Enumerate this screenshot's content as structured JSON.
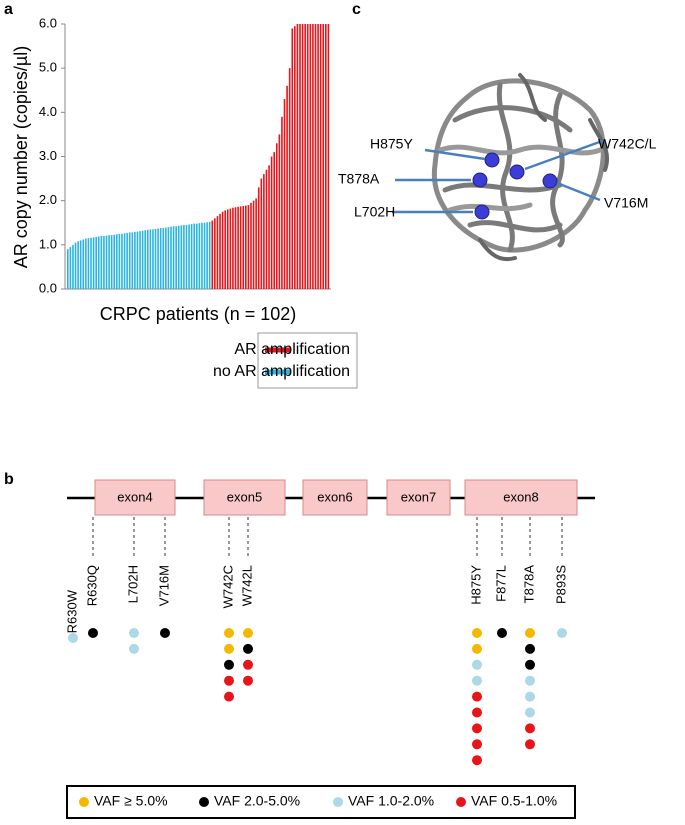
{
  "panel_labels": {
    "a": "a",
    "b": "b",
    "c": "c"
  },
  "chart_data": {
    "type": "bar",
    "ylabel": "AR copy number (copies/µl)",
    "xlabel": "CRPC patients (n = 102)",
    "ylim": [
      0,
      6
    ],
    "yticks": [
      {
        "value": 0,
        "label": "0.0"
      },
      {
        "value": 1,
        "label": "1.0"
      },
      {
        "value": 2,
        "label": "2.0"
      },
      {
        "value": 3,
        "label": "3.0"
      },
      {
        "value": 4,
        "label": "4.0"
      },
      {
        "value": 5,
        "label": "5.0"
      },
      {
        "value": 6,
        "label": "6.0"
      }
    ],
    "series": [
      {
        "name": "AR amplification",
        "color": "#e8141a",
        "values": [
          1.55,
          1.6,
          1.65,
          1.7,
          1.75,
          1.78,
          1.8,
          1.82,
          1.84,
          1.85,
          1.86,
          1.87,
          1.88,
          1.89,
          1.9,
          1.95,
          2.0,
          2.05,
          2.3,
          2.5,
          2.6,
          2.7,
          2.8,
          3.0,
          3.1,
          3.3,
          3.5,
          3.9,
          4.3,
          4.6,
          5.0,
          5.9,
          5.95,
          6,
          6,
          6,
          6,
          6,
          6,
          6,
          6,
          6,
          6,
          6,
          6,
          6
        ]
      },
      {
        "name": "no AR amplification",
        "color": "#2ab4e0",
        "values": [
          0.9,
          0.95,
          1.0,
          1.05,
          1.08,
          1.1,
          1.12,
          1.14,
          1.15,
          1.16,
          1.17,
          1.18,
          1.19,
          1.2,
          1.2,
          1.21,
          1.22,
          1.22,
          1.23,
          1.24,
          1.25,
          1.25,
          1.26,
          1.27,
          1.28,
          1.28,
          1.29,
          1.3,
          1.31,
          1.32,
          1.33,
          1.34,
          1.35,
          1.35,
          1.36,
          1.37,
          1.38,
          1.38,
          1.39,
          1.4,
          1.41,
          1.42,
          1.42,
          1.43,
          1.44,
          1.45,
          1.45,
          1.46,
          1.47,
          1.48,
          1.48,
          1.49,
          1.5,
          1.5,
          1.51,
          1.52
        ]
      }
    ]
  },
  "gene_diagram": {
    "exons": [
      "exon4",
      "exon5",
      "exon6",
      "exon7",
      "exon8"
    ],
    "mutations": [
      {
        "label": "R630W",
        "color": "#000000",
        "dots": [
          2
        ]
      },
      {
        "label": "R630Q",
        "color": "#000000",
        "dots": [
          1
        ]
      },
      {
        "label": "L702H",
        "color": "#e8141a",
        "dots": [
          2,
          2
        ]
      },
      {
        "label": "V716M",
        "color": "#000000",
        "dots": [
          1
        ]
      },
      {
        "label": "W742C",
        "color": "#e8141a",
        "dots": [
          0,
          0,
          1,
          3,
          3
        ]
      },
      {
        "label": "W742L",
        "color": "#e8141a",
        "dots": [
          0,
          1,
          3,
          3
        ]
      },
      {
        "label": "H875Y",
        "color": "#e8141a",
        "dots": [
          0,
          0,
          2,
          2,
          3,
          3,
          3,
          3,
          3
        ]
      },
      {
        "label": "F877L",
        "color": "#000000",
        "dots": [
          1
        ]
      },
      {
        "label": "T878A",
        "color": "#e8141a",
        "dots": [
          0,
          1,
          1,
          2,
          2,
          2,
          3,
          3
        ]
      },
      {
        "label": "P893S",
        "color": "#000000",
        "dots": [
          2
        ]
      }
    ],
    "legend": [
      {
        "label": "VAF ≥ 5.0%",
        "color": "#f5b800"
      },
      {
        "label": "VAF 2.0-5.0%",
        "color": "#000000"
      },
      {
        "label": "VAF 1.0-2.0%",
        "color": "#add8e6"
      },
      {
        "label": "VAF 0.5-1.0%",
        "color": "#e8141a"
      }
    ]
  },
  "structure": {
    "labels": [
      "H875Y",
      "W742C/L",
      "T878A",
      "V716M",
      "L702H"
    ]
  }
}
